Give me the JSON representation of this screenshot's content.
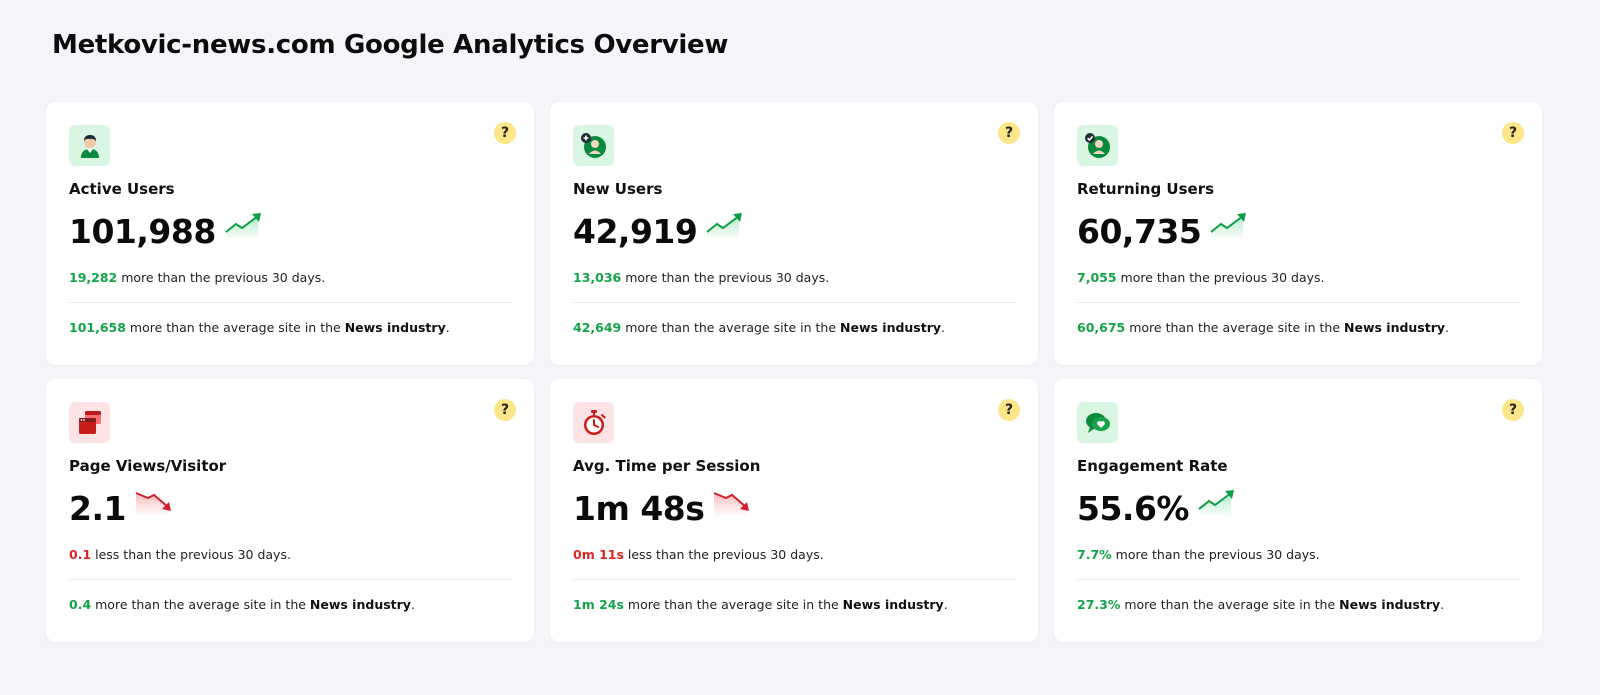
{
  "page": {
    "title": "Metkovic-news.com Google Analytics Overview"
  },
  "colors": {
    "positive": "#15a34a",
    "negative": "#dc2626",
    "help_badge": "#fde68a",
    "icon_bg_green": "#d9f6e3",
    "icon_bg_red": "#fde3e3"
  },
  "cards": [
    {
      "label": "Active Users",
      "value": "101,988",
      "icon": "user-icon",
      "trend": "up",
      "change_value": "19,282",
      "change_text": " more than the previous 30 days.",
      "industry_value": "101,658",
      "industry_text": " more than the average site in the ",
      "industry_name": "News industry",
      "industry_suffix": "."
    },
    {
      "label": "New Users",
      "value": "42,919",
      "icon": "new-user-icon",
      "trend": "up",
      "change_value": "13,036",
      "change_text": " more than the previous 30 days.",
      "industry_value": "42,649",
      "industry_text": " more than the average site in the ",
      "industry_name": "News industry",
      "industry_suffix": "."
    },
    {
      "label": "Returning Users",
      "value": "60,735",
      "icon": "returning-user-icon",
      "trend": "up",
      "change_value": "7,055",
      "change_text": " more than the previous 30 days.",
      "industry_value": "60,675",
      "industry_text": " more than the average site in the ",
      "industry_name": "News industry",
      "industry_suffix": "."
    },
    {
      "label": "Page Views/Visitor",
      "value": "2.1",
      "icon": "browser-windows-icon",
      "trend": "down",
      "change_value": "0.1",
      "change_text": " less than the previous 30 days.",
      "industry_value": "0.4",
      "industry_text": " more than the average site in the ",
      "industry_name": "News industry",
      "industry_suffix": "."
    },
    {
      "label": "Avg. Time per Session",
      "value": "1m 48s",
      "icon": "stopwatch-icon",
      "trend": "down",
      "change_value": "0m 11s",
      "change_text": " less than the previous 30 days.",
      "industry_value": "1m 24s",
      "industry_text": " more than the average site in the ",
      "industry_name": "News industry",
      "industry_suffix": "."
    },
    {
      "label": "Engagement Rate",
      "value": "55.6%",
      "icon": "chat-heart-icon",
      "trend": "up",
      "change_value": "7.7%",
      "change_text": " more than the previous 30 days.",
      "industry_value": "27.3%",
      "industry_text": " more than the average site in the ",
      "industry_name": "News industry",
      "industry_suffix": "."
    }
  ]
}
